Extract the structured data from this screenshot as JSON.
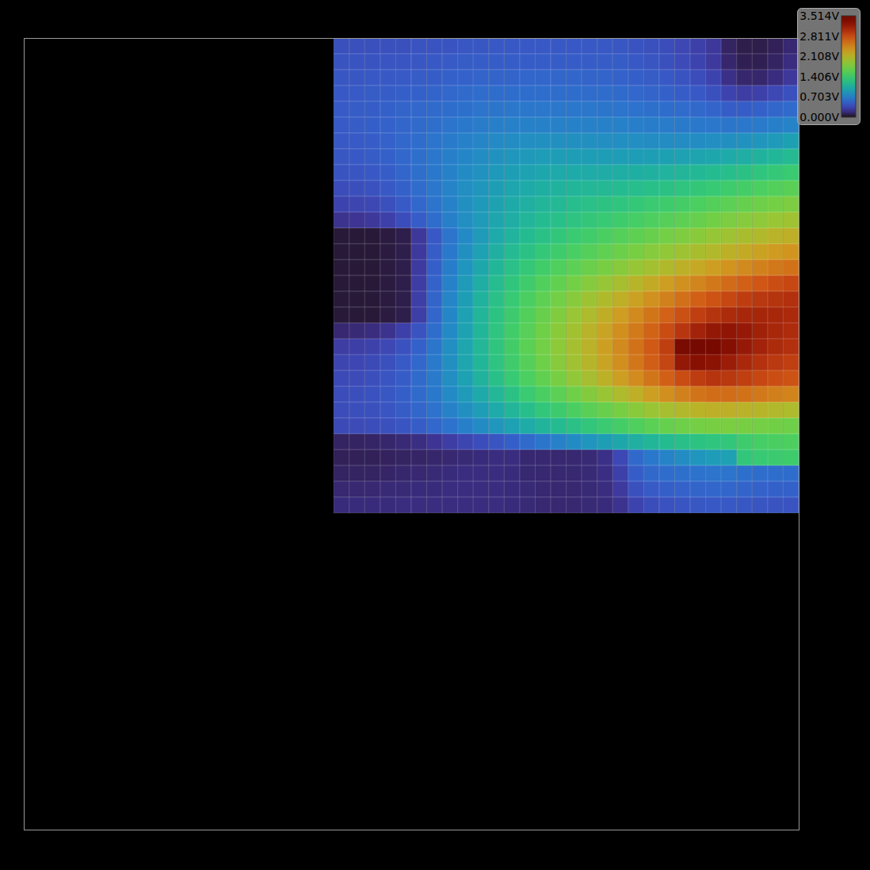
{
  "chart_data": {
    "type": "heatmap",
    "tick_labels": false,
    "color": "turbo",
    "xlim": [
      0,
      1000
    ],
    "ylim": [
      0,
      1000
    ],
    "x": [
      400,
      420,
      440,
      460,
      480,
      500,
      520,
      540,
      560,
      580,
      600,
      620,
      640,
      660,
      680,
      700,
      720,
      740,
      760,
      780,
      800,
      820,
      840,
      860,
      880,
      900,
      920,
      940,
      960,
      980,
      1000
    ],
    "y": [
      1000,
      980,
      960,
      940,
      920,
      900,
      880,
      860,
      840,
      820,
      800,
      780,
      760,
      740,
      720,
      700,
      680,
      660,
      640,
      620,
      600,
      580,
      560,
      540,
      520,
      500,
      480,
      460,
      440,
      420,
      400
    ],
    "values": [
      [
        0.4,
        0.4,
        0.4,
        0.4,
        0.4,
        0.42,
        0.42,
        0.42,
        0.44,
        0.44,
        0.45,
        0.45,
        0.45,
        0.45,
        0.45,
        0.45,
        0.45,
        0.45,
        0.44,
        0.42,
        0.4,
        0.38,
        0.35,
        0.3,
        0.25,
        0.12,
        0.08,
        0.08,
        0.1,
        0.15
      ],
      [
        0.42,
        0.42,
        0.42,
        0.43,
        0.43,
        0.44,
        0.45,
        0.46,
        0.47,
        0.48,
        0.48,
        0.48,
        0.48,
        0.48,
        0.48,
        0.48,
        0.48,
        0.48,
        0.47,
        0.45,
        0.43,
        0.4,
        0.37,
        0.32,
        0.26,
        0.14,
        0.09,
        0.09,
        0.12,
        0.18
      ],
      [
        0.44,
        0.44,
        0.45,
        0.45,
        0.46,
        0.47,
        0.48,
        0.5,
        0.51,
        0.52,
        0.52,
        0.52,
        0.53,
        0.53,
        0.53,
        0.53,
        0.52,
        0.52,
        0.51,
        0.49,
        0.47,
        0.45,
        0.42,
        0.38,
        0.32,
        0.2,
        0.14,
        0.14,
        0.18,
        0.25
      ],
      [
        0.45,
        0.46,
        0.47,
        0.48,
        0.49,
        0.5,
        0.52,
        0.54,
        0.56,
        0.57,
        0.58,
        0.58,
        0.58,
        0.58,
        0.58,
        0.58,
        0.57,
        0.57,
        0.56,
        0.54,
        0.52,
        0.5,
        0.48,
        0.45,
        0.4,
        0.32,
        0.28,
        0.3,
        0.35,
        0.4
      ],
      [
        0.46,
        0.47,
        0.48,
        0.5,
        0.52,
        0.54,
        0.56,
        0.58,
        0.6,
        0.62,
        0.63,
        0.64,
        0.64,
        0.64,
        0.64,
        0.64,
        0.64,
        0.63,
        0.62,
        0.61,
        0.6,
        0.58,
        0.57,
        0.55,
        0.52,
        0.48,
        0.48,
        0.5,
        0.53,
        0.56
      ],
      [
        0.46,
        0.47,
        0.49,
        0.51,
        0.53,
        0.56,
        0.59,
        0.62,
        0.65,
        0.67,
        0.69,
        0.7,
        0.71,
        0.71,
        0.71,
        0.71,
        0.71,
        0.7,
        0.7,
        0.69,
        0.68,
        0.67,
        0.66,
        0.65,
        0.64,
        0.63,
        0.64,
        0.66,
        0.69,
        0.72
      ],
      [
        0.45,
        0.46,
        0.48,
        0.51,
        0.54,
        0.58,
        0.62,
        0.66,
        0.7,
        0.73,
        0.76,
        0.78,
        0.79,
        0.8,
        0.8,
        0.8,
        0.8,
        0.79,
        0.79,
        0.79,
        0.78,
        0.78,
        0.78,
        0.78,
        0.79,
        0.8,
        0.82,
        0.85,
        0.88,
        0.92
      ],
      [
        0.44,
        0.45,
        0.47,
        0.5,
        0.54,
        0.59,
        0.64,
        0.69,
        0.74,
        0.78,
        0.82,
        0.85,
        0.87,
        0.89,
        0.9,
        0.9,
        0.9,
        0.9,
        0.9,
        0.9,
        0.91,
        0.92,
        0.93,
        0.95,
        0.97,
        1.0,
        1.03,
        1.07,
        1.11,
        1.15
      ],
      [
        0.42,
        0.43,
        0.45,
        0.48,
        0.53,
        0.59,
        0.65,
        0.71,
        0.77,
        0.82,
        0.87,
        0.91,
        0.94,
        0.97,
        0.99,
        1.0,
        1.01,
        1.02,
        1.03,
        1.04,
        1.06,
        1.08,
        1.1,
        1.13,
        1.16,
        1.2,
        1.24,
        1.28,
        1.32,
        1.36
      ],
      [
        0.38,
        0.39,
        0.41,
        0.45,
        0.5,
        0.57,
        0.64,
        0.72,
        0.79,
        0.85,
        0.91,
        0.96,
        1.0,
        1.04,
        1.07,
        1.1,
        1.12,
        1.14,
        1.16,
        1.18,
        1.21,
        1.24,
        1.27,
        1.31,
        1.35,
        1.4,
        1.44,
        1.49,
        1.53,
        1.57
      ],
      [
        0.32,
        0.33,
        0.35,
        0.4,
        0.46,
        0.54,
        0.62,
        0.71,
        0.8,
        0.87,
        0.94,
        1.0,
        1.05,
        1.1,
        1.14,
        1.18,
        1.22,
        1.25,
        1.28,
        1.32,
        1.36,
        1.4,
        1.44,
        1.49,
        1.54,
        1.59,
        1.64,
        1.69,
        1.73,
        1.77
      ],
      [
        0.22,
        0.23,
        0.25,
        0.3,
        0.38,
        0.48,
        0.58,
        0.69,
        0.79,
        0.88,
        0.96,
        1.03,
        1.1,
        1.16,
        1.21,
        1.26,
        1.31,
        1.35,
        1.4,
        1.45,
        1.5,
        1.55,
        1.6,
        1.65,
        1.71,
        1.77,
        1.82,
        1.87,
        1.92,
        1.96
      ],
      [
        0.05,
        0.05,
        0.05,
        0.06,
        0.08,
        0.25,
        0.45,
        0.62,
        0.76,
        0.88,
        0.99,
        1.08,
        1.16,
        1.23,
        1.3,
        1.36,
        1.42,
        1.48,
        1.54,
        1.6,
        1.66,
        1.72,
        1.78,
        1.84,
        1.9,
        1.96,
        2.02,
        2.07,
        2.12,
        2.16
      ],
      [
        0.05,
        0.05,
        0.05,
        0.06,
        0.08,
        0.26,
        0.47,
        0.65,
        0.8,
        0.93,
        1.05,
        1.15,
        1.24,
        1.32,
        1.4,
        1.47,
        1.54,
        1.61,
        1.68,
        1.75,
        1.82,
        1.88,
        1.95,
        2.02,
        2.08,
        2.15,
        2.21,
        2.27,
        2.32,
        2.36
      ],
      [
        0.05,
        0.05,
        0.05,
        0.06,
        0.08,
        0.27,
        0.49,
        0.68,
        0.84,
        0.98,
        1.11,
        1.22,
        1.32,
        1.42,
        1.51,
        1.59,
        1.67,
        1.75,
        1.83,
        1.91,
        1.99,
        2.07,
        2.15,
        2.22,
        2.3,
        2.37,
        2.44,
        2.5,
        2.55,
        2.59
      ],
      [
        0.05,
        0.05,
        0.05,
        0.06,
        0.08,
        0.28,
        0.51,
        0.71,
        0.88,
        1.03,
        1.17,
        1.29,
        1.41,
        1.52,
        1.62,
        1.72,
        1.82,
        1.91,
        2.01,
        2.11,
        2.2,
        2.3,
        2.39,
        2.47,
        2.55,
        2.63,
        2.7,
        2.76,
        2.81,
        2.85
      ],
      [
        0.05,
        0.05,
        0.05,
        0.06,
        0.08,
        0.29,
        0.52,
        0.73,
        0.91,
        1.07,
        1.22,
        1.35,
        1.48,
        1.6,
        1.72,
        1.83,
        1.95,
        2.06,
        2.17,
        2.28,
        2.39,
        2.5,
        2.6,
        2.7,
        2.78,
        2.85,
        2.91,
        2.95,
        2.98,
        3.0
      ],
      [
        0.05,
        0.05,
        0.05,
        0.06,
        0.08,
        0.29,
        0.53,
        0.74,
        0.93,
        1.1,
        1.25,
        1.39,
        1.53,
        1.66,
        1.79,
        1.92,
        2.05,
        2.18,
        2.31,
        2.44,
        2.57,
        2.69,
        2.8,
        2.9,
        2.98,
        3.04,
        3.07,
        3.08,
        3.07,
        3.05
      ],
      [
        0.15,
        0.16,
        0.18,
        0.22,
        0.3,
        0.42,
        0.58,
        0.76,
        0.94,
        1.11,
        1.27,
        1.42,
        1.56,
        1.7,
        1.84,
        1.98,
        2.12,
        2.26,
        2.4,
        2.54,
        2.68,
        2.82,
        2.96,
        3.1,
        3.2,
        3.22,
        3.18,
        3.12,
        3.07,
        3.03
      ],
      [
        0.28,
        0.29,
        0.31,
        0.35,
        0.41,
        0.5,
        0.63,
        0.79,
        0.96,
        1.12,
        1.28,
        1.43,
        1.58,
        1.72,
        1.86,
        2.0,
        2.14,
        2.29,
        2.44,
        2.59,
        2.74,
        2.9,
        3.4,
        3.51,
        3.46,
        3.3,
        3.18,
        3.1,
        3.04,
        3.0
      ],
      [
        0.33,
        0.34,
        0.36,
        0.4,
        0.46,
        0.54,
        0.66,
        0.8,
        0.96,
        1.11,
        1.26,
        1.41,
        1.55,
        1.69,
        1.83,
        1.97,
        2.11,
        2.26,
        2.41,
        2.56,
        2.71,
        2.86,
        3.2,
        3.28,
        3.25,
        3.15,
        3.06,
        2.99,
        2.94,
        2.9
      ],
      [
        0.36,
        0.37,
        0.39,
        0.43,
        0.48,
        0.56,
        0.66,
        0.79,
        0.93,
        1.07,
        1.21,
        1.35,
        1.49,
        1.62,
        1.75,
        1.88,
        2.01,
        2.15,
        2.29,
        2.43,
        2.57,
        2.7,
        2.82,
        2.92,
        2.97,
        2.95,
        2.9,
        2.85,
        2.81,
        2.78
      ],
      [
        0.38,
        0.39,
        0.41,
        0.44,
        0.49,
        0.56,
        0.65,
        0.76,
        0.88,
        1.0,
        1.12,
        1.24,
        1.36,
        1.48,
        1.59,
        1.7,
        1.81,
        1.93,
        2.05,
        2.17,
        2.29,
        2.4,
        2.5,
        2.58,
        2.62,
        2.62,
        2.59,
        2.55,
        2.51,
        2.48
      ],
      [
        0.38,
        0.39,
        0.4,
        0.43,
        0.47,
        0.53,
        0.61,
        0.7,
        0.8,
        0.9,
        1.0,
        1.1,
        1.2,
        1.3,
        1.39,
        1.48,
        1.57,
        1.66,
        1.75,
        1.84,
        1.93,
        2.01,
        2.08,
        2.13,
        2.16,
        2.16,
        2.14,
        2.11,
        2.08,
        2.05
      ],
      [
        0.36,
        0.37,
        0.38,
        0.4,
        0.43,
        0.48,
        0.54,
        0.61,
        0.69,
        0.77,
        0.85,
        0.93,
        1.01,
        1.09,
        1.16,
        1.23,
        1.3,
        1.37,
        1.44,
        1.51,
        1.58,
        1.64,
        1.69,
        1.73,
        1.75,
        1.76,
        1.75,
        1.73,
        1.71,
        1.69
      ],
      [
        0.12,
        0.12,
        0.13,
        0.14,
        0.16,
        0.19,
        0.23,
        0.28,
        0.33,
        0.38,
        0.43,
        0.49,
        0.56,
        0.63,
        0.7,
        0.77,
        0.84,
        0.91,
        0.98,
        1.05,
        1.11,
        1.16,
        1.21,
        1.25,
        1.28,
        1.3,
        1.4,
        1.45,
        1.48,
        1.5
      ],
      [
        0.1,
        0.1,
        0.1,
        0.11,
        0.12,
        0.13,
        0.14,
        0.15,
        0.16,
        0.17,
        0.18,
        0.18,
        0.15,
        0.15,
        0.15,
        0.15,
        0.16,
        0.2,
        0.35,
        0.55,
        0.65,
        0.72,
        0.78,
        0.84,
        0.89,
        0.93,
        1.3,
        1.35,
        1.38,
        1.4
      ],
      [
        0.12,
        0.12,
        0.12,
        0.13,
        0.14,
        0.15,
        0.16,
        0.17,
        0.18,
        0.18,
        0.18,
        0.17,
        0.15,
        0.15,
        0.15,
        0.15,
        0.16,
        0.19,
        0.3,
        0.48,
        0.55,
        0.58,
        0.6,
        0.61,
        0.62,
        0.62,
        0.6,
        0.58,
        0.58,
        0.58
      ],
      [
        0.15,
        0.15,
        0.15,
        0.16,
        0.16,
        0.17,
        0.17,
        0.18,
        0.18,
        0.18,
        0.18,
        0.17,
        0.16,
        0.15,
        0.15,
        0.15,
        0.16,
        0.18,
        0.26,
        0.4,
        0.46,
        0.49,
        0.51,
        0.52,
        0.53,
        0.53,
        0.52,
        0.51,
        0.5,
        0.5
      ],
      [
        0.17,
        0.17,
        0.17,
        0.17,
        0.18,
        0.18,
        0.18,
        0.18,
        0.18,
        0.18,
        0.18,
        0.17,
        0.16,
        0.15,
        0.15,
        0.15,
        0.16,
        0.17,
        0.22,
        0.32,
        0.38,
        0.41,
        0.43,
        0.44,
        0.45,
        0.45,
        0.44,
        0.43,
        0.42,
        0.42
      ]
    ],
    "color_range": [
      0,
      3.514
    ],
    "color_ticks": [
      {
        "value": 0,
        "label": "0.000V"
      },
      {
        "value": 0.703,
        "label": "0.703V"
      },
      {
        "value": 1.406,
        "label": "1.406V"
      },
      {
        "value": 2.108,
        "label": "2.108V"
      },
      {
        "value": 2.811,
        "label": "2.811V"
      },
      {
        "value": 3.514,
        "label": "3.514V"
      }
    ]
  }
}
